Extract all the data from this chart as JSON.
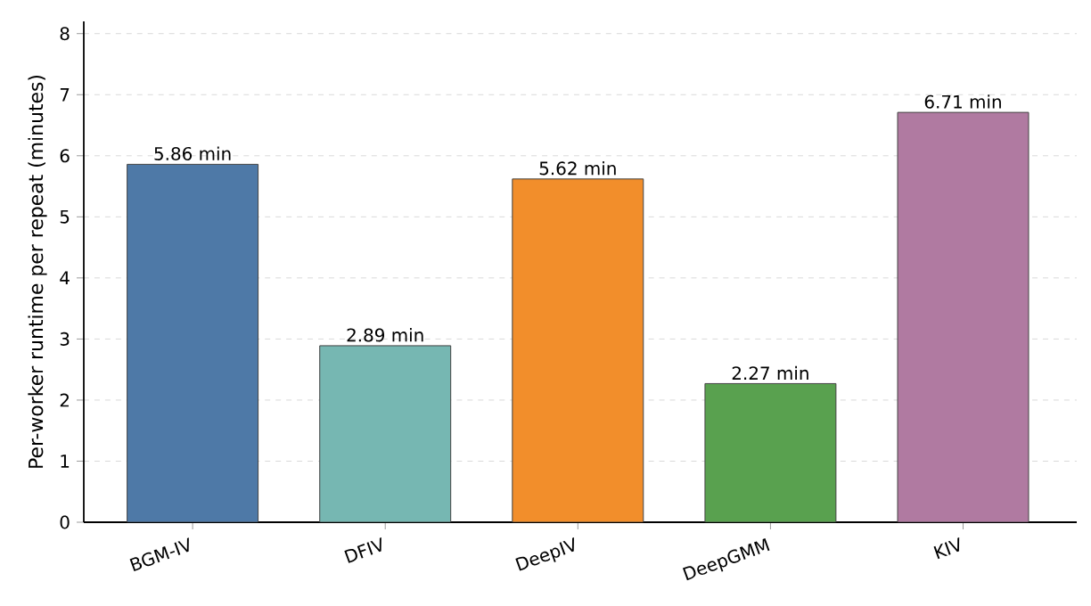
{
  "chart_data": {
    "type": "bar",
    "ylabel": "Per-worker runtime per repeat (minutes)",
    "categories": [
      "BGM-IV",
      "DFIV",
      "DeepIV",
      "DeepGMM",
      "KIV"
    ],
    "values": [
      5.86,
      2.89,
      5.62,
      2.27,
      6.71
    ],
    "value_labels": [
      "5.86 min",
      "2.89 min",
      "5.62 min",
      "2.27 min",
      "6.71 min"
    ],
    "colors": [
      "#4e79a7",
      "#76b7b2",
      "#f28e2b",
      "#59a14f",
      "#b07aa1"
    ],
    "ylim": [
      0,
      8.2
    ],
    "yticks": [
      0,
      1,
      2,
      3,
      4,
      5,
      6,
      7,
      8
    ],
    "grid": "y"
  }
}
